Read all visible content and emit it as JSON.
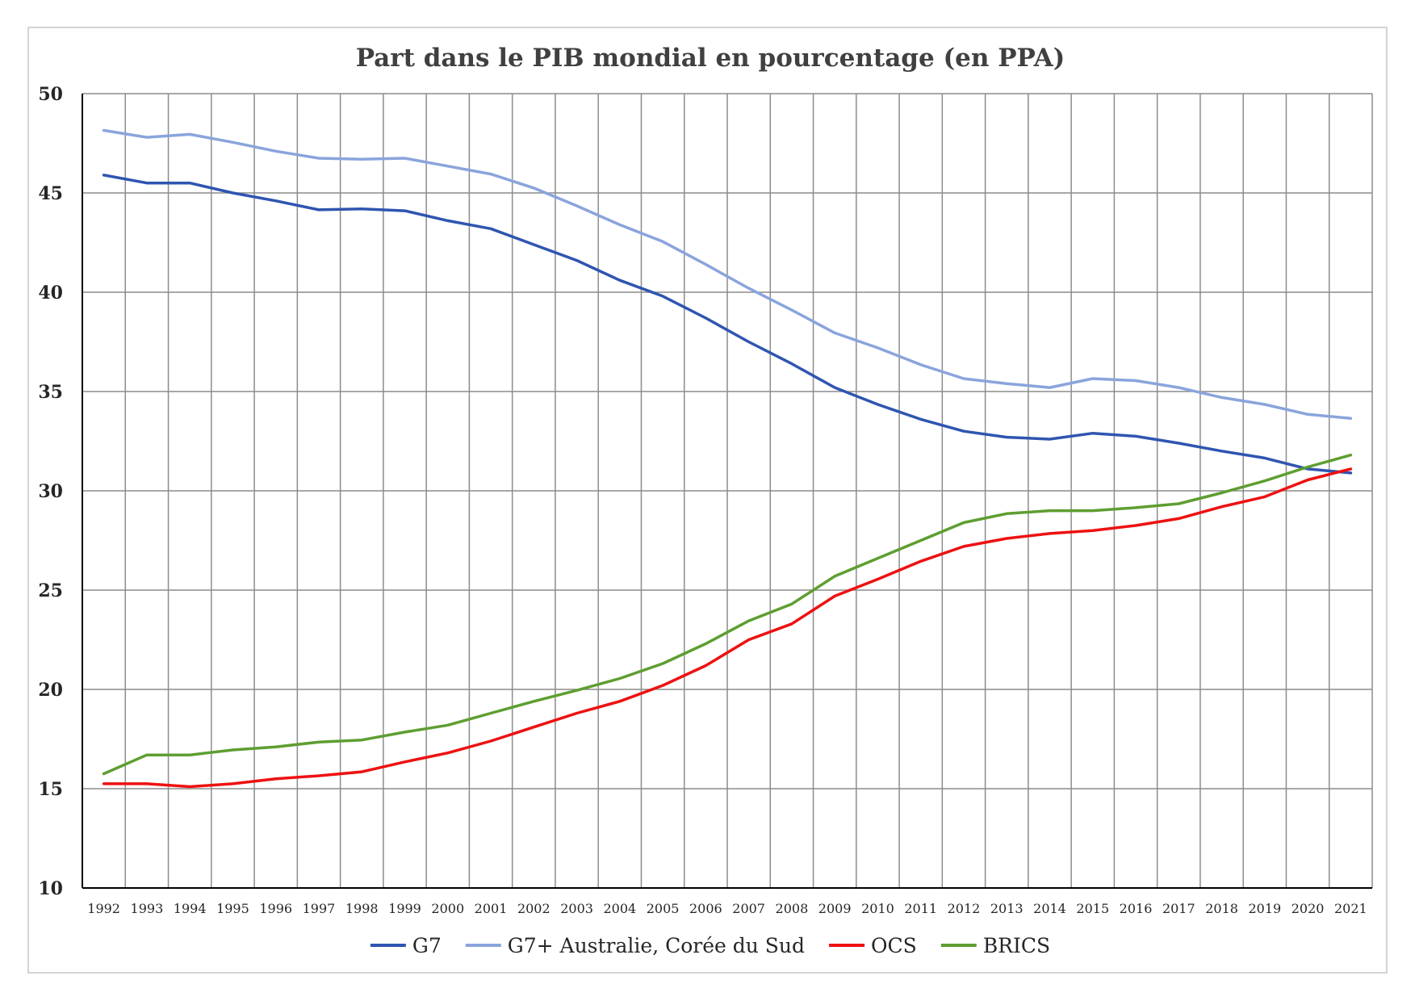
{
  "chart_data": {
    "type": "line",
    "title": "Part dans le PIB mondial en pourcentage (en PPA)",
    "xlabel": "",
    "ylabel": "",
    "x": [
      "1992",
      "1993",
      "1994",
      "1995",
      "1996",
      "1997",
      "1998",
      "1999",
      "2000",
      "2001",
      "2002",
      "2003",
      "2004",
      "2005",
      "2006",
      "2007",
      "2008",
      "2009",
      "2010",
      "2011",
      "2012",
      "2013",
      "2014",
      "2015",
      "2016",
      "2017",
      "2018",
      "2019",
      "2020",
      "2021"
    ],
    "ylim": [
      10,
      50
    ],
    "yticks": [
      10,
      15,
      20,
      25,
      30,
      35,
      40,
      45,
      50
    ],
    "grid": true,
    "legend_position": "bottom",
    "series": [
      {
        "name": "G7",
        "color": "#2f55b0",
        "values": [
          45.9,
          45.5,
          45.5,
          45.0,
          44.6,
          44.15,
          44.2,
          44.1,
          43.6,
          43.2,
          42.4,
          41.6,
          40.6,
          39.8,
          38.7,
          37.5,
          36.4,
          35.2,
          34.35,
          33.6,
          33.0,
          32.7,
          32.6,
          32.9,
          32.75,
          32.4,
          32.0,
          31.65,
          31.1,
          30.9
        ]
      },
      {
        "name": "G7+ Australie, Corée du Sud",
        "color": "#8aa4dc",
        "values": [
          48.15,
          47.8,
          47.95,
          47.55,
          47.1,
          46.75,
          46.7,
          46.75,
          46.35,
          45.95,
          45.25,
          44.35,
          43.4,
          42.55,
          41.4,
          40.2,
          39.1,
          37.95,
          37.2,
          36.35,
          35.65,
          35.4,
          35.2,
          35.65,
          35.55,
          35.2,
          34.7,
          34.35,
          33.85,
          33.65
        ]
      },
      {
        "name": "OCS",
        "color": "#ee1111",
        "values": [
          15.25,
          15.25,
          15.1,
          15.25,
          15.5,
          15.65,
          15.85,
          16.35,
          16.8,
          17.4,
          18.1,
          18.8,
          19.4,
          20.2,
          21.2,
          22.5,
          23.3,
          24.7,
          25.55,
          26.45,
          27.2,
          27.6,
          27.85,
          28.0,
          28.25,
          28.6,
          29.2,
          29.7,
          30.55,
          31.1
        ]
      },
      {
        "name": "BRICS",
        "color": "#5e9e31",
        "values": [
          15.75,
          16.7,
          16.7,
          16.95,
          17.1,
          17.35,
          17.45,
          17.85,
          18.2,
          18.8,
          19.4,
          19.95,
          20.55,
          21.3,
          22.3,
          23.45,
          24.3,
          25.7,
          26.6,
          27.5,
          28.4,
          28.85,
          29.0,
          29.0,
          29.15,
          29.35,
          29.9,
          30.5,
          31.2,
          31.8
        ]
      }
    ]
  }
}
